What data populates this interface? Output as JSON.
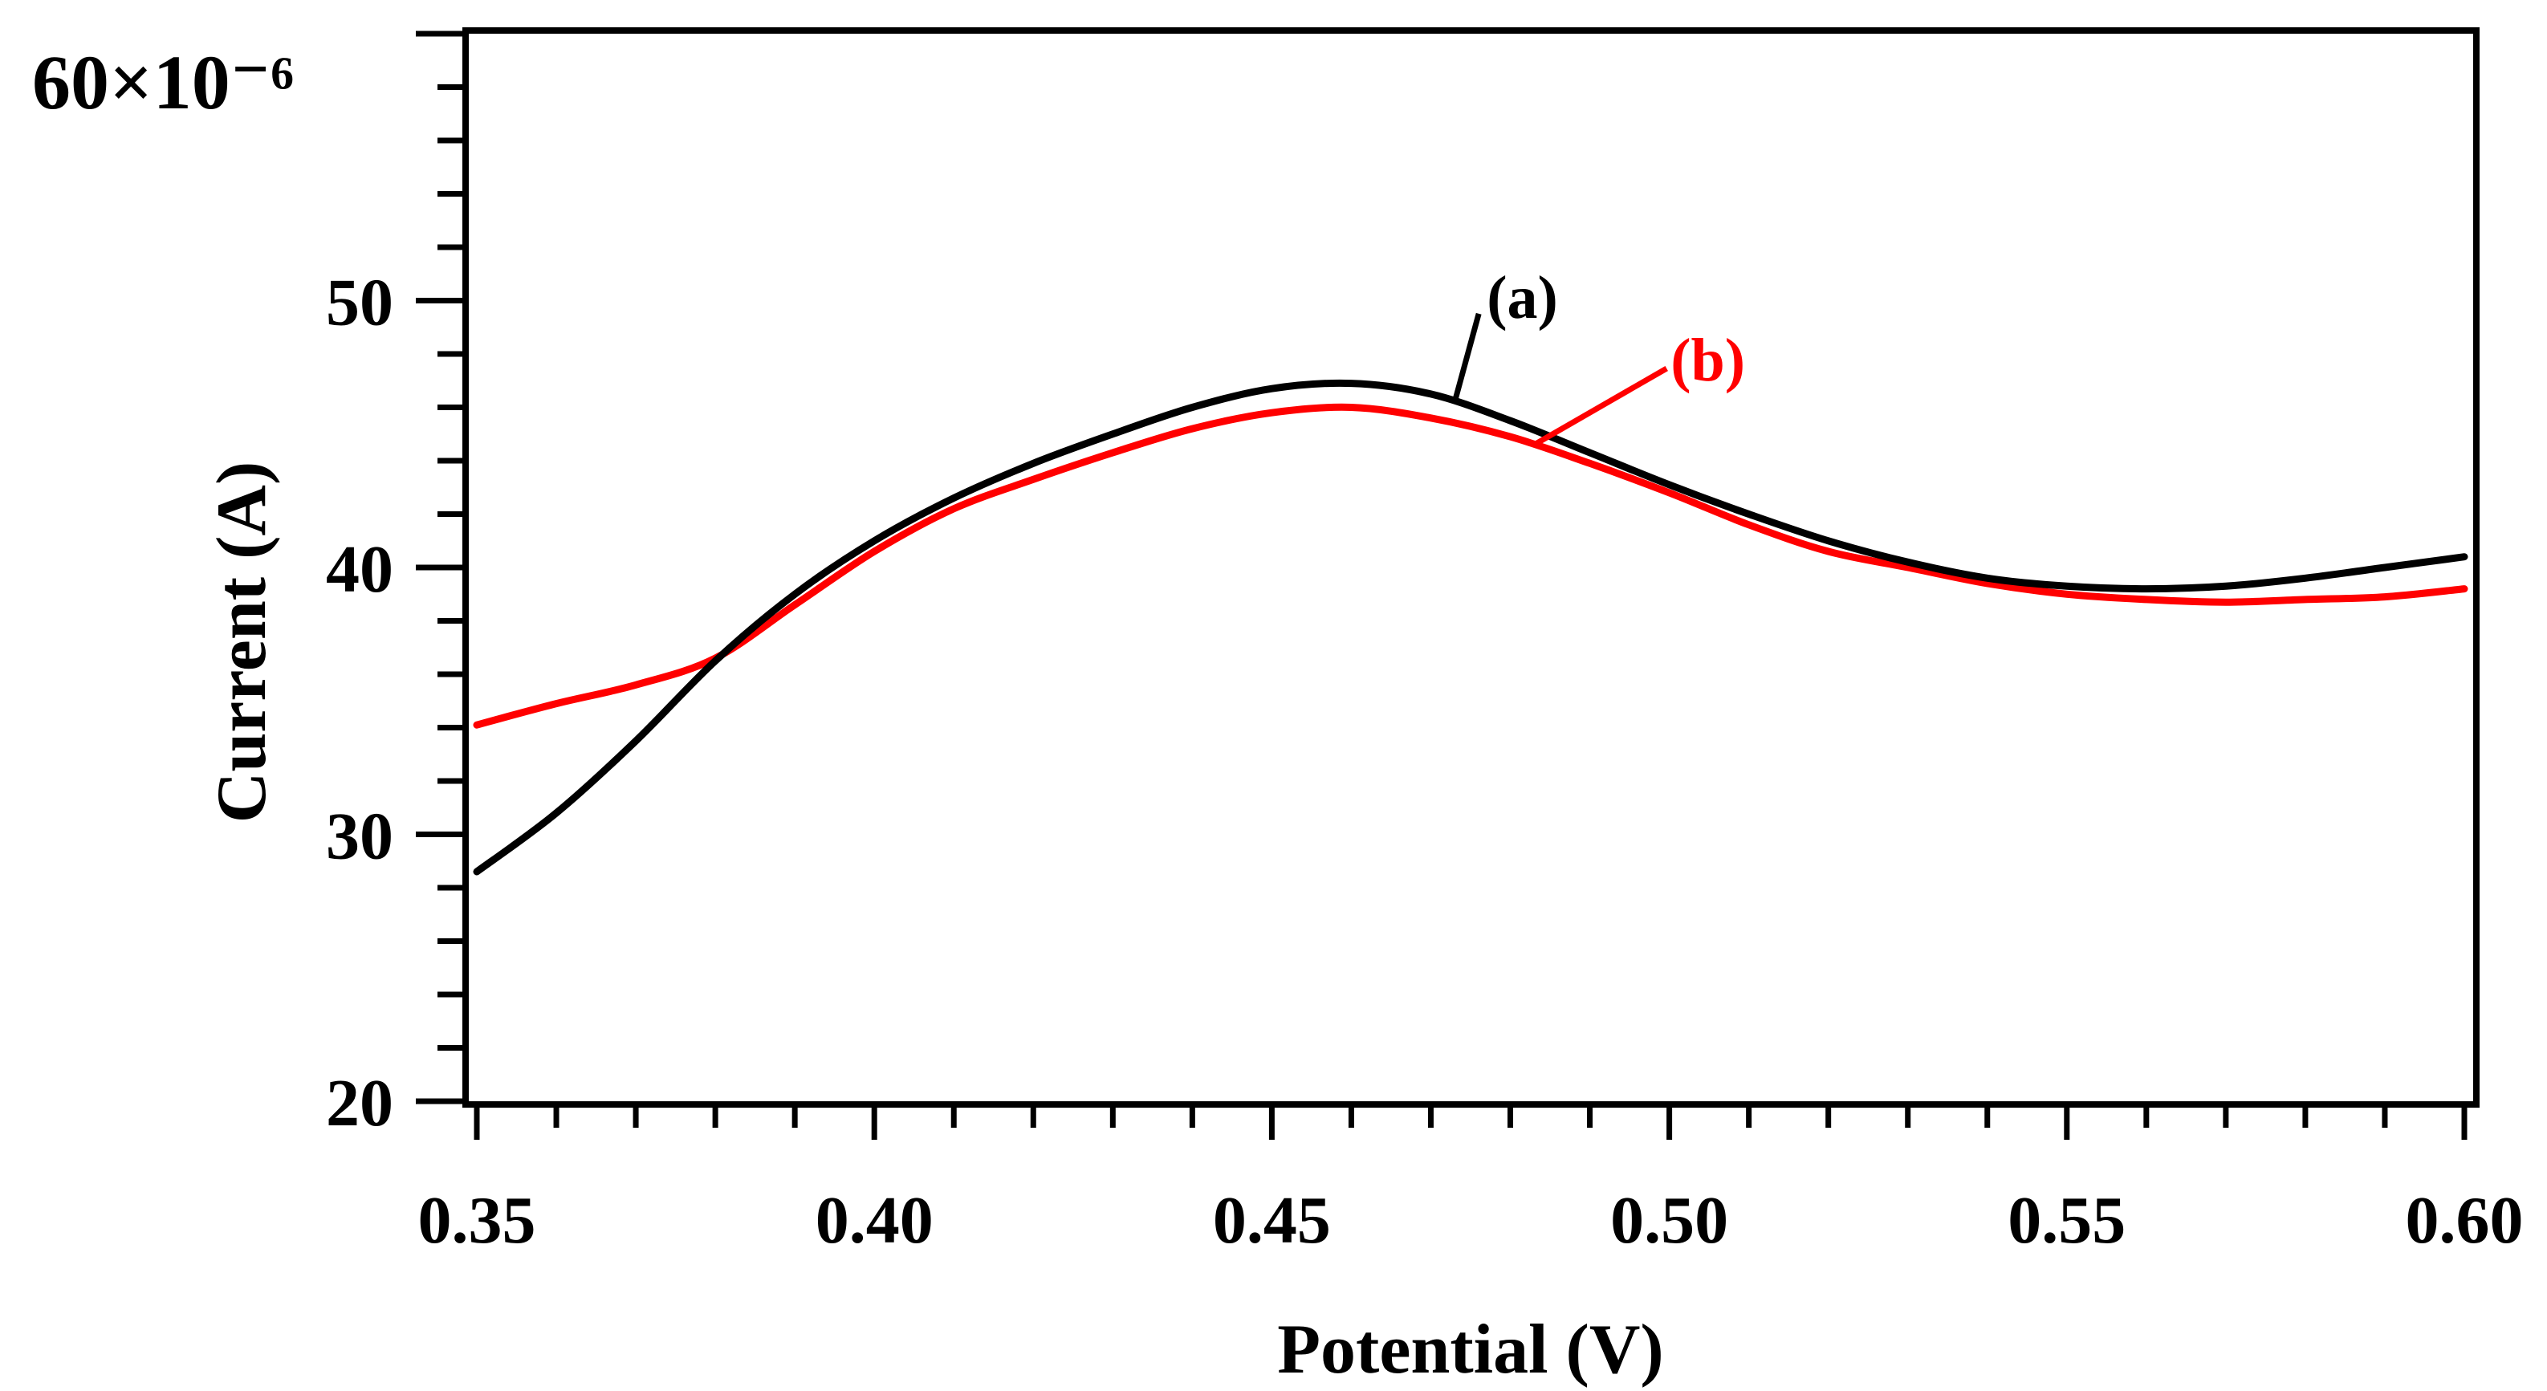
{
  "chart_data": {
    "type": "line",
    "title": "",
    "xlabel": "Potential (V)",
    "ylabel": "Current (A)",
    "y_multiplier_label": "60×10⁻⁶",
    "xlim": [
      0.35,
      0.6
    ],
    "ylim": [
      20,
      60
    ],
    "x_ticks": [
      0.35,
      0.4,
      0.45,
      0.5,
      0.55,
      0.6
    ],
    "x_tick_labels": [
      "0.35",
      "0.40",
      "0.45",
      "0.50",
      "0.55",
      "0.60"
    ],
    "y_ticks": [
      20,
      30,
      40,
      50
    ],
    "y_tick_labels": [
      "20",
      "30",
      "40",
      "50"
    ],
    "grid": false,
    "series": [
      {
        "name": "(a)",
        "color": "#000000",
        "x": [
          0.35,
          0.36,
          0.37,
          0.38,
          0.39,
          0.4,
          0.41,
          0.42,
          0.43,
          0.44,
          0.45,
          0.46,
          0.47,
          0.48,
          0.49,
          0.5,
          0.51,
          0.52,
          0.53,
          0.54,
          0.55,
          0.56,
          0.57,
          0.58,
          0.59,
          0.6
        ],
        "values": [
          28.6,
          30.8,
          33.5,
          36.5,
          39.0,
          41.0,
          42.6,
          43.9,
          45.0,
          46.0,
          46.7,
          46.9,
          46.5,
          45.5,
          44.3,
          43.1,
          42.0,
          41.0,
          40.2,
          39.6,
          39.3,
          39.2,
          39.3,
          39.6,
          40.0,
          40.4
        ],
        "label_text": "(a)",
        "label_anchor_x": 0.473
      },
      {
        "name": "(b)",
        "color": "#ff0000",
        "x": [
          0.35,
          0.36,
          0.37,
          0.38,
          0.39,
          0.4,
          0.41,
          0.42,
          0.43,
          0.44,
          0.45,
          0.46,
          0.47,
          0.48,
          0.49,
          0.5,
          0.51,
          0.52,
          0.53,
          0.54,
          0.55,
          0.56,
          0.57,
          0.58,
          0.59,
          0.6
        ],
        "values": [
          34.1,
          34.9,
          35.6,
          36.6,
          38.6,
          40.6,
          42.2,
          43.3,
          44.3,
          45.2,
          45.8,
          46.0,
          45.6,
          44.9,
          43.9,
          42.8,
          41.6,
          40.6,
          40.0,
          39.4,
          39.0,
          38.8,
          38.7,
          38.8,
          38.9,
          39.2
        ],
        "label_text": "(b)",
        "label_anchor_x": 0.483
      }
    ]
  }
}
